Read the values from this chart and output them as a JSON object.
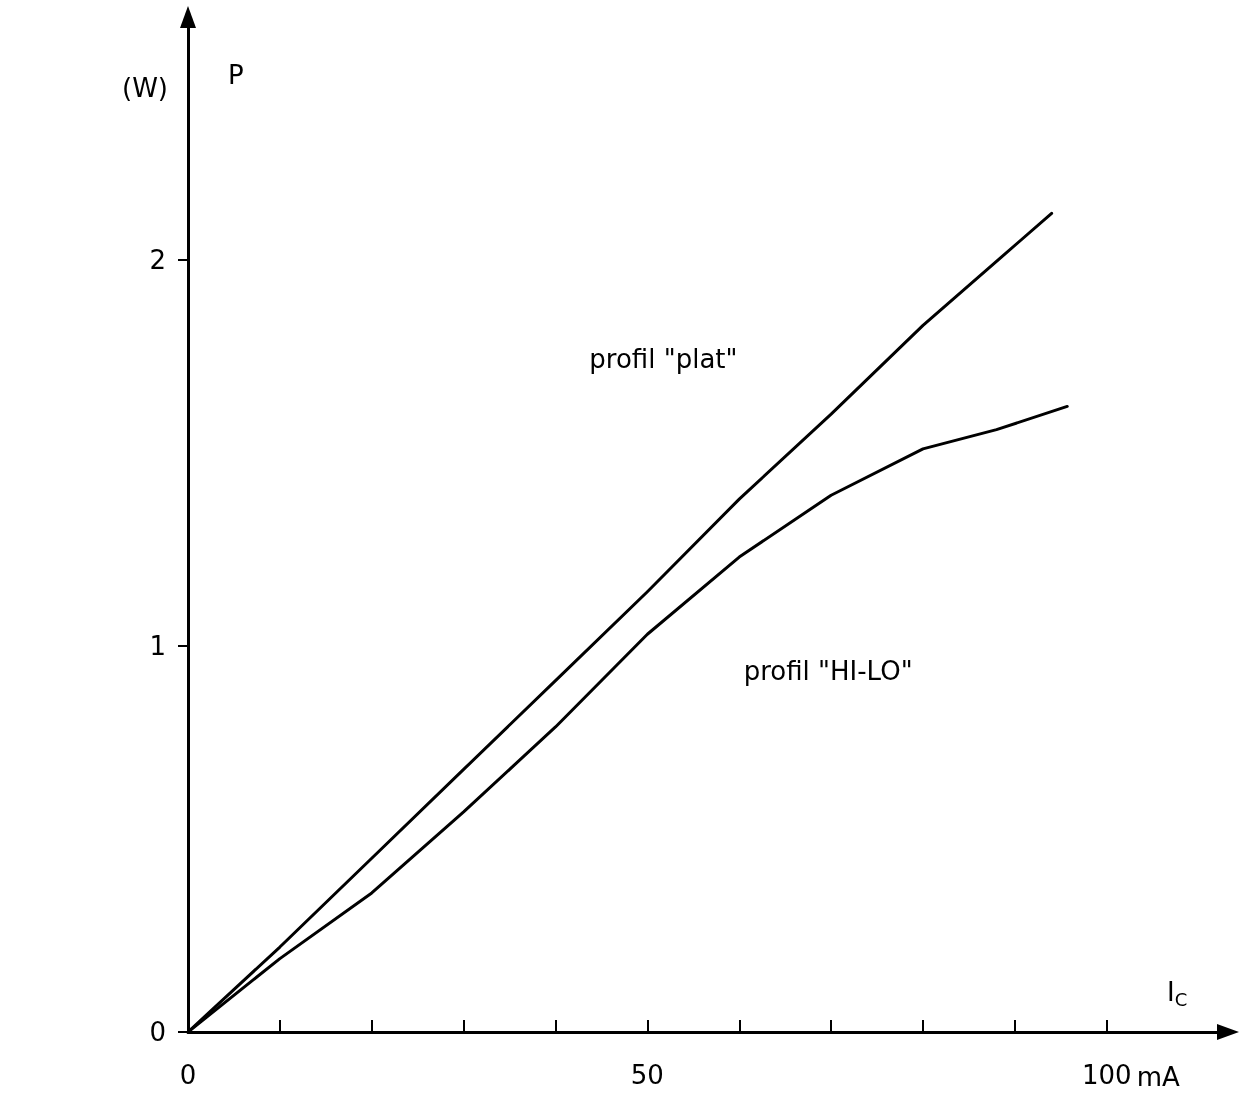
{
  "chart_data": {
    "type": "line",
    "xlabel": "I$_{C}$",
    "ylabel": "P",
    "annotations": [
      "(W)",
      "mA",
      "profil \"plat\"",
      "profil \"HI-LO\""
    ],
    "series": [
      {
        "color": "#000000",
        "x": [
          0,
          10,
          20,
          30,
          40,
          50,
          60,
          70,
          80,
          94
        ],
        "values": [
          0,
          0.22,
          0.45,
          0.68,
          0.91,
          1.14,
          1.38,
          1.6,
          1.83,
          2.12
        ]
      },
      {
        "color": "#000000",
        "x": [
          0,
          10,
          20,
          30,
          40,
          50,
          60,
          70,
          80,
          88,
          95.7
        ],
        "values": [
          0,
          0.19,
          0.36,
          0.57,
          0.79,
          1.03,
          1.23,
          1.39,
          1.51,
          1.56,
          1.62
        ]
      }
    ],
    "xlim": [
      0,
      112
    ],
    "ylim": [
      0,
      2.6
    ],
    "xticks": [
      0,
      {
        "value": 10,
        "label": null
      },
      {
        "value": 20,
        "label": null
      },
      {
        "value": 30,
        "label": null
      },
      {
        "value": 40,
        "label": null
      },
      50,
      {
        "value": 60,
        "label": null
      },
      {
        "value": 70,
        "label": null
      },
      {
        "value": 80,
        "label": null
      },
      {
        "value": 90,
        "label": null
      },
      100
    ],
    "yticks": [
      0,
      1,
      2
    ],
    "grid": false,
    "marker": "none",
    "line_style": "solid"
  }
}
